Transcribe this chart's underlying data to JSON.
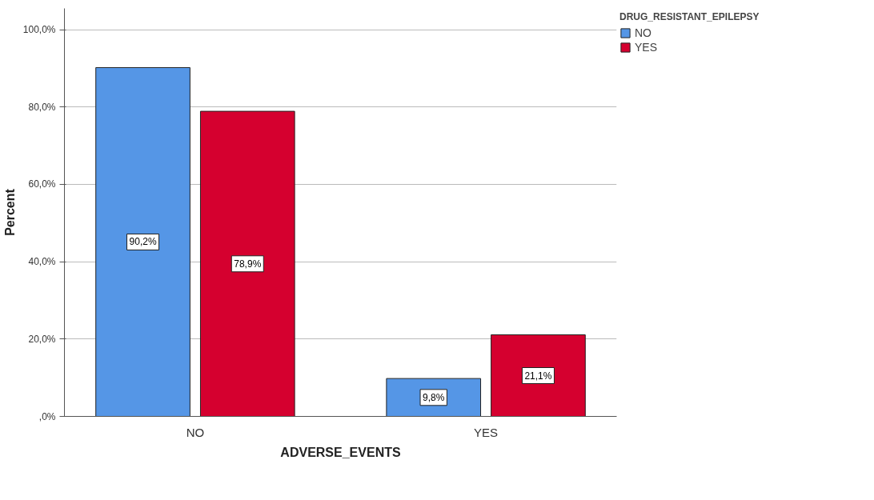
{
  "chart_data": {
    "type": "bar",
    "xlabel": "ADVERSE_EVENTS",
    "ylabel": "Percent",
    "legend_title": "DRUG_RESISTANT_EPILEPSY",
    "categories": [
      "NO",
      "YES"
    ],
    "series": [
      {
        "name": "NO",
        "color": "#5596e6",
        "values": [
          90.2,
          9.8
        ],
        "value_labels": [
          "90,2%",
          "9,8%"
        ]
      },
      {
        "name": "YES",
        "color": "#d5002f",
        "values": [
          78.9,
          21.1
        ],
        "value_labels": [
          "78,9%",
          "21,1%"
        ]
      }
    ],
    "ylim": [
      0,
      105.5
    ],
    "yticks": [
      {
        "value": 0,
        "label": ",0%"
      },
      {
        "value": 20,
        "label": "20,0%"
      },
      {
        "value": 40,
        "label": "40,0%"
      },
      {
        "value": 60,
        "label": "60,0%"
      },
      {
        "value": 80,
        "label": "80,0%"
      },
      {
        "value": 100,
        "label": "100,0%"
      }
    ],
    "grid": "y",
    "legend": "top right"
  }
}
